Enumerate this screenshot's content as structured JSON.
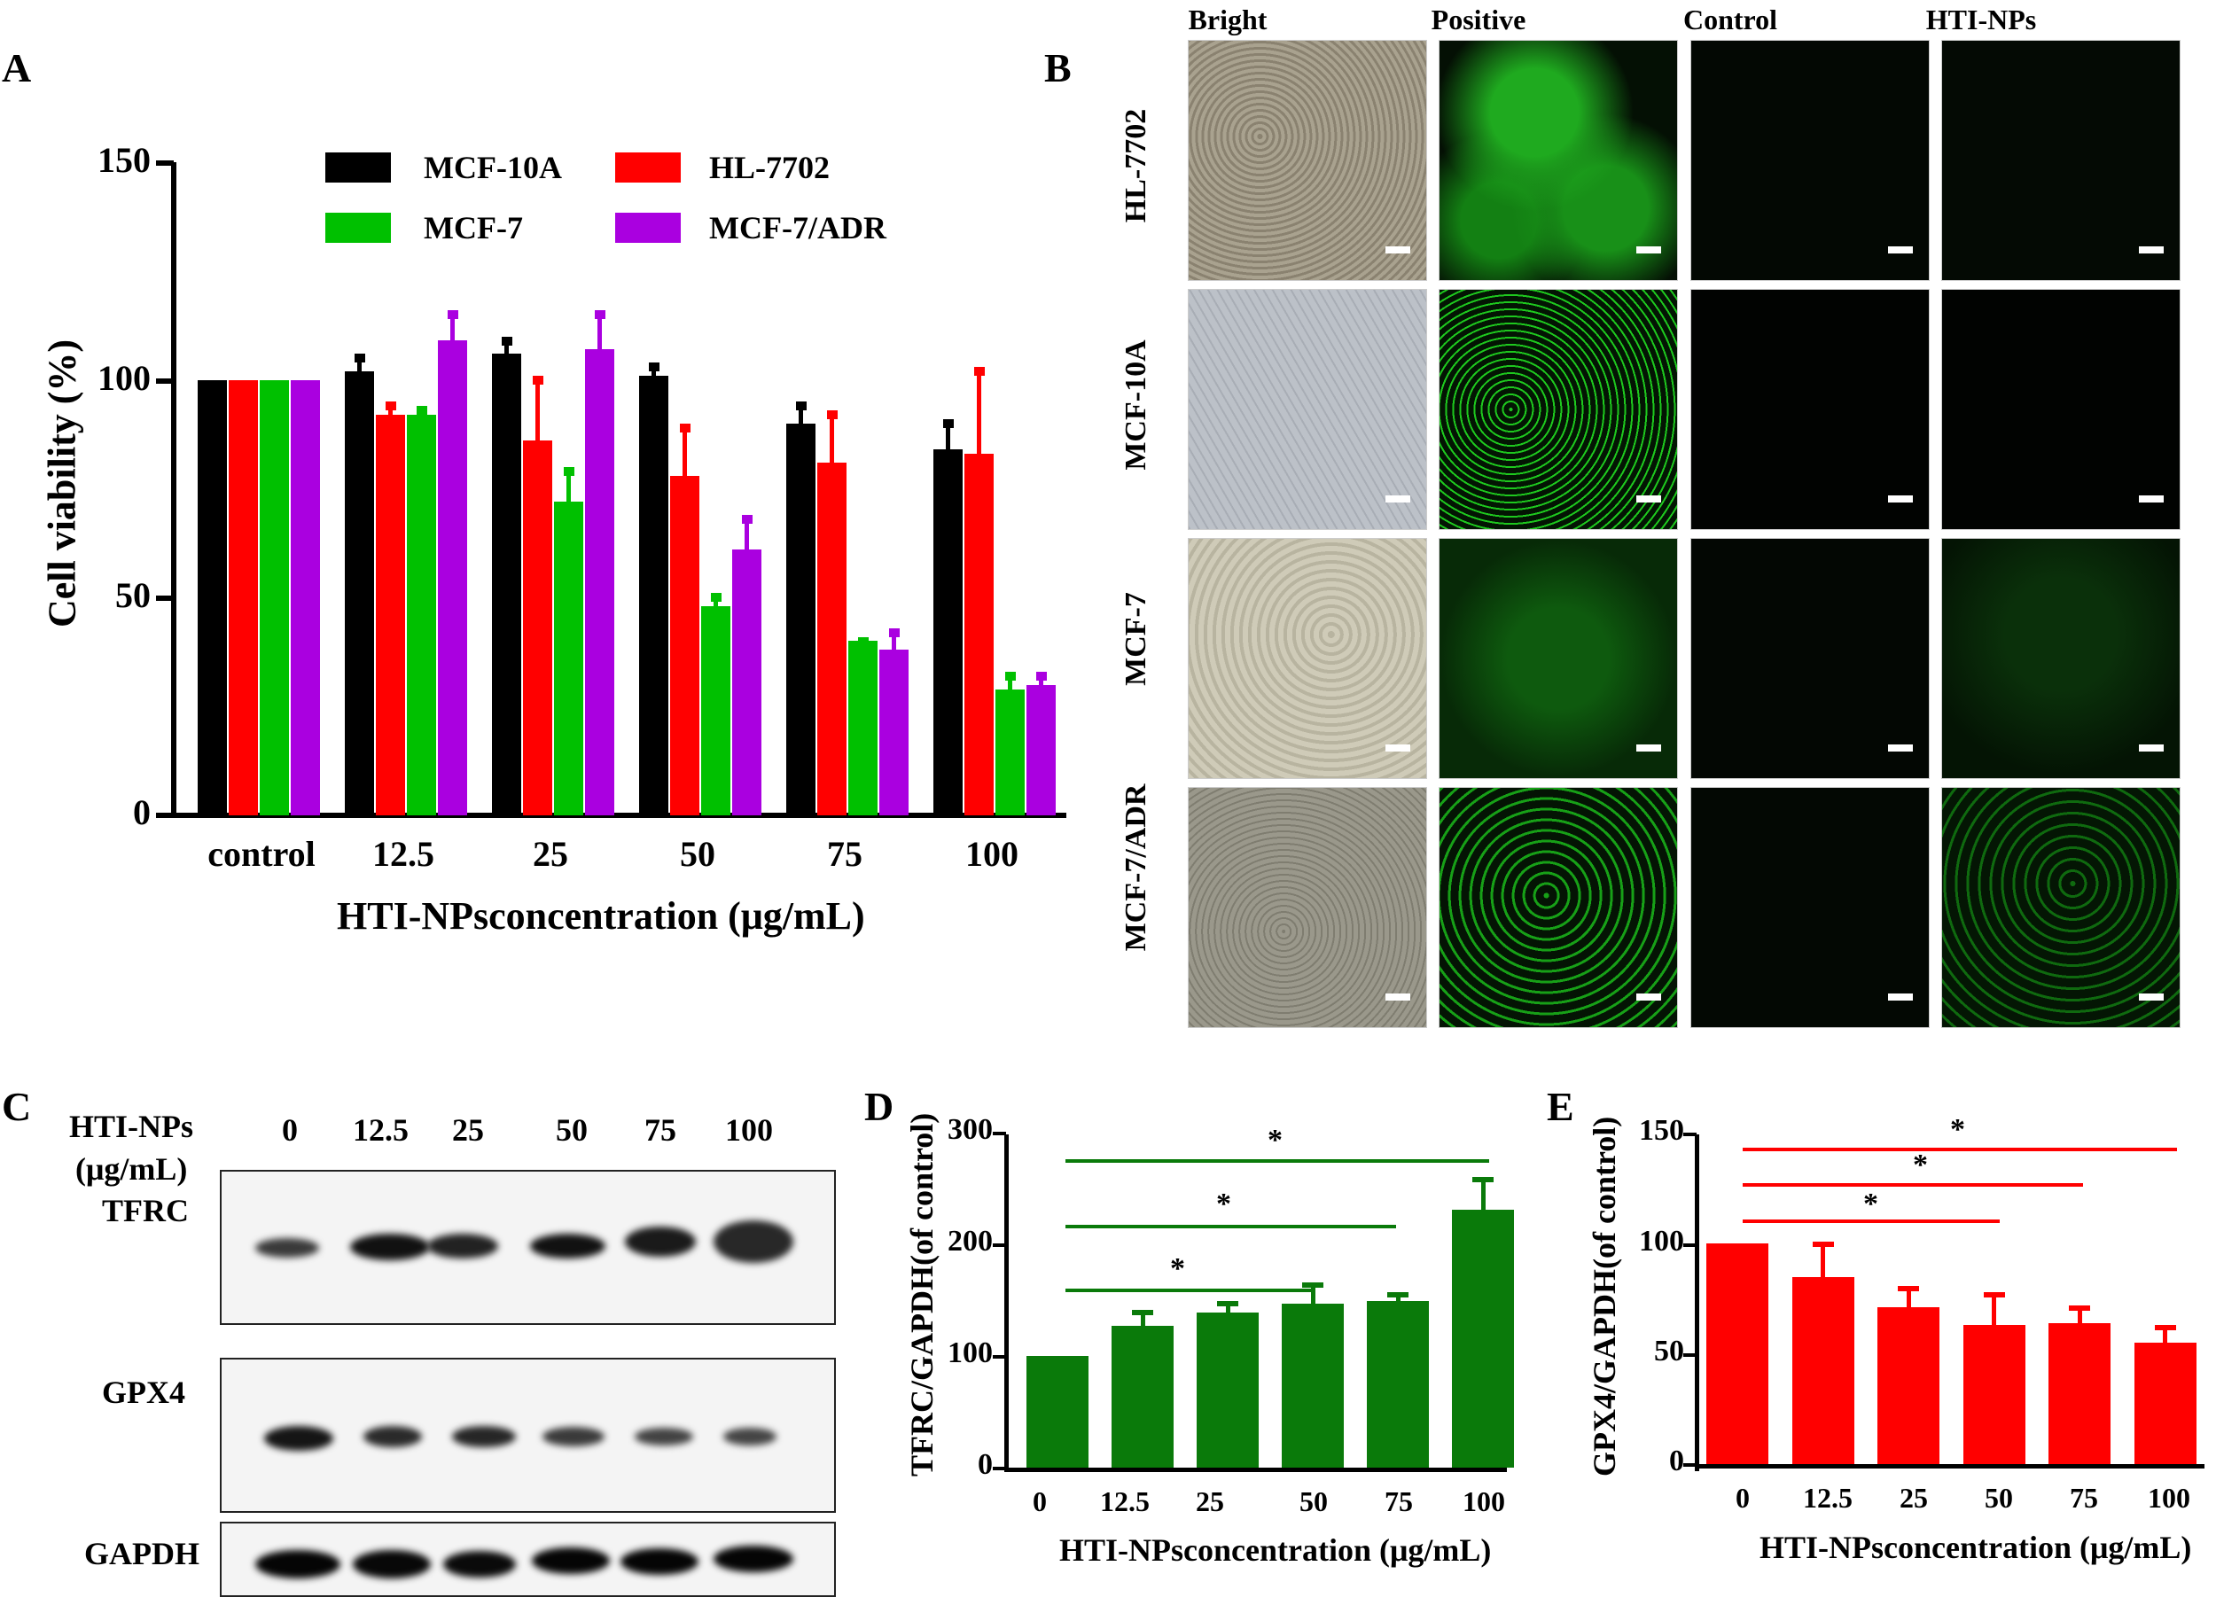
{
  "panels": {
    "A": {
      "label": "A"
    },
    "B": {
      "label": "B"
    },
    "C": {
      "label": "C"
    },
    "D": {
      "label": "D"
    },
    "E": {
      "label": "E"
    }
  },
  "chart_data": [
    {
      "panel": "A",
      "type": "bar",
      "title": "",
      "xlabel": "HTI-NPsconcentration (μg/mL)",
      "ylabel": "Cell viability (%)",
      "ylim": [
        0,
        150
      ],
      "yticks": [
        0,
        50,
        100,
        150
      ],
      "categories": [
        "control",
        "12.5",
        "25",
        "50",
        "75",
        "100"
      ],
      "legend_position": "top-inside",
      "grid": false,
      "series": [
        {
          "name": "MCF-10A",
          "color": "#000000",
          "values": [
            100,
            102,
            106,
            101,
            90,
            84
          ],
          "error_top": [
            100,
            106,
            110,
            104,
            95,
            91
          ]
        },
        {
          "name": "HL-7702",
          "color": "#ff0000",
          "values": [
            100,
            92,
            86,
            78,
            81,
            83
          ],
          "error_top": [
            100,
            95,
            101,
            90,
            93,
            103
          ]
        },
        {
          "name": "MCF-7",
          "color": "#00c000",
          "values": [
            100,
            92,
            72,
            48,
            40,
            29
          ],
          "error_top": [
            100,
            94,
            80,
            51,
            41,
            33
          ]
        },
        {
          "name": "MCF-7/ADR",
          "color": "#aa00e0",
          "values": [
            100,
            109,
            107,
            61,
            38,
            30
          ],
          "error_top": [
            100,
            116,
            116,
            69,
            43,
            33
          ]
        }
      ]
    },
    {
      "panel": "D",
      "type": "bar",
      "title": "",
      "xlabel": "HTI-NPsconcentration (μg/mL)",
      "ylabel": "TFRC/GAPDH(of control)",
      "ylim": [
        0,
        300
      ],
      "yticks": [
        0,
        100,
        200,
        300
      ],
      "categories": [
        "0",
        "12.5",
        "25",
        "50",
        "75",
        "100"
      ],
      "grid": false,
      "series": [
        {
          "name": "TFRC/GAPDH",
          "color": "#0a7a0a",
          "values": [
            100,
            127,
            139,
            147,
            149,
            231
          ],
          "error_top": [
            100,
            141,
            149,
            166,
            157,
            260
          ]
        }
      ],
      "significance": [
        {
          "from": "0",
          "to": "50",
          "label": "*"
        },
        {
          "from": "0",
          "to": "75",
          "label": "*"
        },
        {
          "from": "0",
          "to": "100",
          "label": "*"
        }
      ]
    },
    {
      "panel": "E",
      "type": "bar",
      "title": "",
      "xlabel": "HTI-NPsconcentration (μg/mL)",
      "ylabel": "GPX4/GAPDH(of control)",
      "ylim": [
        0,
        150
      ],
      "yticks": [
        0,
        50,
        100,
        150
      ],
      "categories": [
        "0",
        "12.5",
        "25",
        "50",
        "75",
        "100"
      ],
      "grid": false,
      "series": [
        {
          "name": "GPX4/GAPDH",
          "color": "#ff0000",
          "values": [
            100,
            85,
            71,
            63,
            64,
            55
          ],
          "error_top": [
            100,
            101,
            81,
            78,
            72,
            63
          ]
        }
      ],
      "significance": [
        {
          "from": "0",
          "to": "50",
          "label": "*"
        },
        {
          "from": "0",
          "to": "75",
          "label": "*"
        },
        {
          "from": "0",
          "to": "100",
          "label": "*"
        }
      ]
    }
  ],
  "chartA": {
    "ylabel": "Cell viability (%)",
    "xlabel": "HTI-NPsconcentration (μg/mL)",
    "yticks": [
      "150",
      "100",
      "50",
      "0"
    ],
    "xticks": [
      "control",
      "12.5",
      "25",
      "50",
      "75",
      "100"
    ],
    "legend": [
      "MCF-10A",
      "HL-7702",
      "MCF-7",
      "MCF-7/ADR"
    ]
  },
  "panelB": {
    "columns": [
      "Bright",
      "Positive",
      "Control",
      "HTI-NPs"
    ],
    "rows": [
      "HL-7702",
      "MCF-10A",
      "MCF-7",
      "MCF-7/ADR"
    ]
  },
  "panelC": {
    "header_line1": "HTI-NPs",
    "header_line2": "(μg/mL)",
    "lanes": [
      "0",
      "12.5",
      "25",
      "50",
      "75",
      "100"
    ],
    "blots": [
      "TFRC",
      "GPX4",
      "GAPDH"
    ]
  },
  "chartD": {
    "ylabel": "TFRC/GAPDH(of control)",
    "xlabel": "HTI-NPsconcentration (μg/mL)",
    "yticks": [
      "300",
      "200",
      "100",
      "0"
    ],
    "xticks": [
      "0",
      "12.5",
      "25",
      "50",
      "75",
      "100"
    ],
    "star": "*"
  },
  "chartE": {
    "ylabel": "GPX4/GAPDH(of control)",
    "xlabel": "HTI-NPsconcentration (μg/mL)",
    "yticks": [
      "150",
      "100",
      "50",
      "0"
    ],
    "xticks": [
      "0",
      "12.5",
      "25",
      "50",
      "75",
      "100"
    ],
    "star": "*"
  },
  "colors": {
    "black": "#000000",
    "red": "#ff0000",
    "green": "#00c000",
    "purple": "#aa00e0",
    "dark_green": "#0a7a0a"
  }
}
